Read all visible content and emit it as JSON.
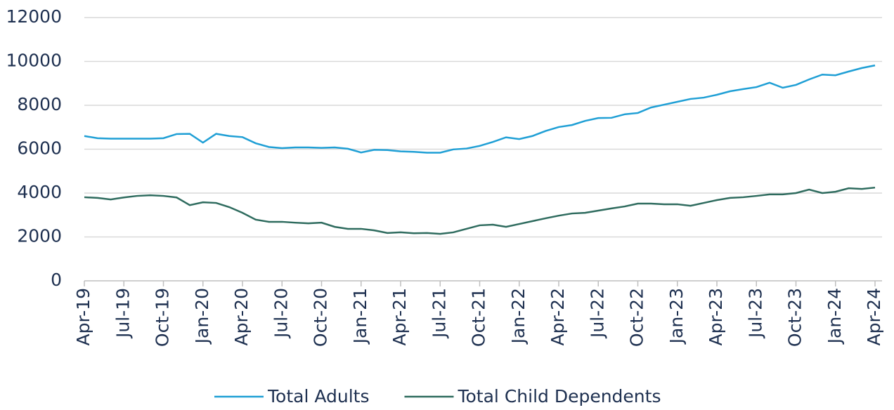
{
  "chart_data": {
    "type": "line",
    "categories": [
      "Apr-19",
      null,
      null,
      "Jul-19",
      null,
      null,
      "Oct-19",
      null,
      null,
      "Jan-20",
      null,
      null,
      "Apr-20",
      null,
      null,
      "Jul-20",
      null,
      null,
      "Oct-20",
      null,
      null,
      "Jan-21",
      null,
      null,
      "Apr-21",
      null,
      null,
      "Jul-21",
      null,
      null,
      "Oct-21",
      null,
      null,
      "Jan-22",
      null,
      null,
      "Apr-22",
      null,
      null,
      "Jul-22",
      null,
      null,
      "Oct-22",
      null,
      null,
      "Jan-23",
      null,
      null,
      "Apr-23",
      null,
      null,
      "Jul-23",
      null,
      null,
      "Oct-23",
      null,
      null,
      "Jan-24",
      null,
      null,
      "Apr-24"
    ],
    "series": [
      {
        "name": "Total Adults",
        "color": "#1f9fd5",
        "values": [
          6600,
          6500,
          6480,
          6480,
          6480,
          6480,
          6500,
          6690,
          6700,
          6300,
          6700,
          6600,
          6550,
          6270,
          6100,
          6050,
          6080,
          6080,
          6060,
          6080,
          6020,
          5850,
          5970,
          5960,
          5900,
          5880,
          5840,
          5840,
          5990,
          6030,
          6150,
          6330,
          6540,
          6460,
          6600,
          6830,
          7010,
          7100,
          7290,
          7420,
          7430,
          7590,
          7650,
          7900,
          8030,
          8160,
          8290,
          8350,
          8480,
          8640,
          8740,
          8830,
          9030,
          8800,
          8930,
          9180,
          9400,
          9370,
          9540,
          9700,
          9820
        ]
      },
      {
        "name": "Total Child Dependents",
        "color": "#2e6b5e",
        "values": [
          3810,
          3780,
          3710,
          3800,
          3870,
          3900,
          3870,
          3800,
          3450,
          3580,
          3550,
          3360,
          3100,
          2790,
          2690,
          2690,
          2650,
          2620,
          2650,
          2460,
          2370,
          2370,
          2300,
          2180,
          2210,
          2170,
          2180,
          2140,
          2210,
          2370,
          2530,
          2560,
          2460,
          2590,
          2720,
          2850,
          2970,
          3070,
          3100,
          3200,
          3300,
          3390,
          3520,
          3520,
          3490,
          3490,
          3420,
          3550,
          3680,
          3780,
          3810,
          3870,
          3940,
          3940,
          4000,
          4160,
          4000,
          4060,
          4220,
          4190,
          4250
        ]
      }
    ],
    "ylim": [
      0,
      12000
    ],
    "yticks": [
      0,
      2000,
      4000,
      6000,
      8000,
      10000,
      12000
    ],
    "grid": true
  }
}
